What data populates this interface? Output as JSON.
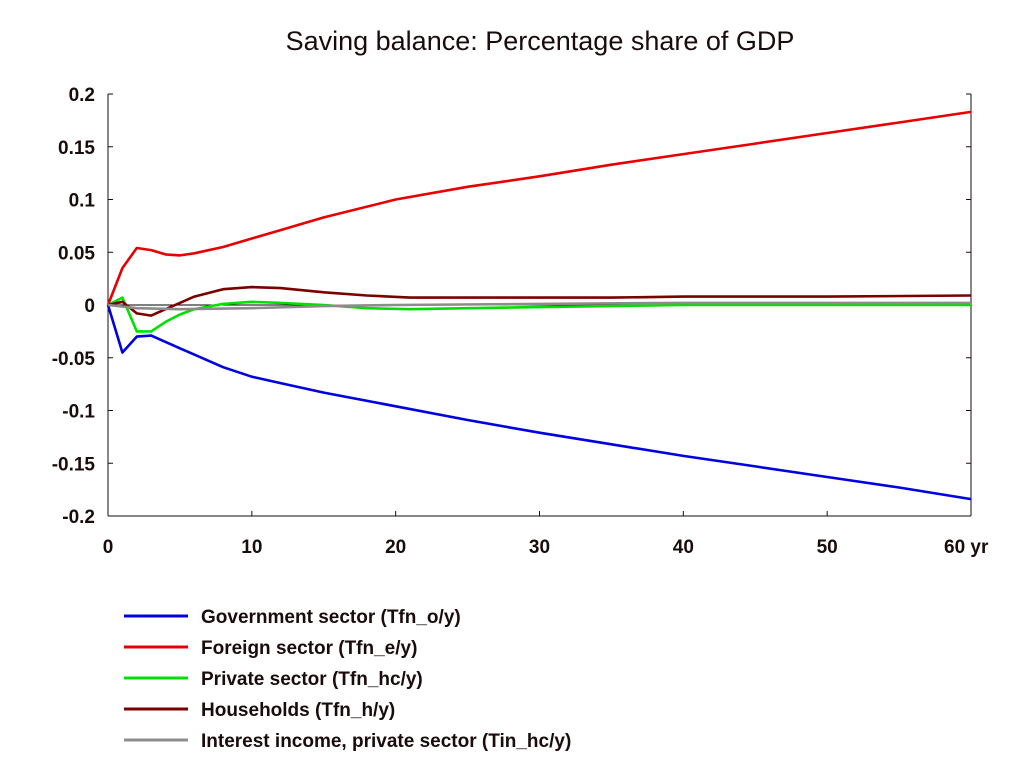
{
  "chart_data": {
    "type": "line",
    "title": "Saving balance: Percentage share of GDP",
    "xlabel": "",
    "ylabel": "",
    "x_unit": "yr",
    "xlim": [
      0,
      60
    ],
    "ylim": [
      -0.2,
      0.2
    ],
    "x_ticks": [
      0,
      10,
      20,
      30,
      40,
      50,
      60
    ],
    "x_tick_labels": [
      "0",
      "10",
      "20",
      "30",
      "40",
      "50",
      "60 yr"
    ],
    "y_ticks": [
      0.2,
      0.15,
      0.1,
      0.05,
      0,
      -0.05,
      -0.1,
      -0.15,
      -0.2
    ],
    "y_tick_labels": [
      "0.2",
      "0.15",
      "0.1",
      "0.05",
      "0",
      "-0.05",
      "-0.1",
      "-0.15",
      "-0.2"
    ],
    "grid": false,
    "legend_position": "bottom",
    "series": [
      {
        "name": "Government sector (Tfn_o/y)",
        "color": "#0000e0",
        "x": [
          0,
          1,
          2,
          3,
          4,
          5,
          6,
          8,
          10,
          12,
          15,
          20,
          25,
          30,
          35,
          40,
          45,
          50,
          55,
          60
        ],
        "values": [
          0,
          -0.045,
          -0.03,
          -0.029,
          -0.035,
          -0.041,
          -0.047,
          -0.059,
          -0.068,
          -0.074,
          -0.083,
          -0.096,
          -0.109,
          -0.121,
          -0.132,
          -0.143,
          -0.153,
          -0.163,
          -0.173,
          -0.184
        ]
      },
      {
        "name": "Foreign sector (Tfn_e/y)",
        "color": "#e80000",
        "x": [
          0,
          1,
          2,
          3,
          4,
          5,
          6,
          8,
          10,
          12,
          15,
          20,
          25,
          30,
          35,
          40,
          45,
          50,
          55,
          60
        ],
        "values": [
          0,
          0.035,
          0.054,
          0.052,
          0.048,
          0.047,
          0.049,
          0.055,
          0.063,
          0.071,
          0.083,
          0.1,
          0.112,
          0.122,
          0.133,
          0.143,
          0.153,
          0.163,
          0.173,
          0.183
        ]
      },
      {
        "name": "Private sector (Tfn_hc/y)",
        "color": "#00e000",
        "x": [
          0,
          1,
          2,
          3,
          4,
          5,
          6,
          8,
          10,
          12,
          15,
          18,
          21,
          25,
          30,
          35,
          40,
          50,
          60
        ],
        "values": [
          0,
          0.007,
          -0.025,
          -0.025,
          -0.016,
          -0.009,
          -0.004,
          0.001,
          0.003,
          0.002,
          0,
          -0.003,
          -0.004,
          -0.003,
          -0.002,
          -0.001,
          0,
          0,
          0
        ]
      },
      {
        "name": "Households (Tfn_h/y)",
        "color": "#7a0000",
        "x": [
          0,
          1,
          2,
          3,
          4,
          5,
          6,
          8,
          10,
          12,
          15,
          18,
          21,
          25,
          30,
          35,
          40,
          50,
          60
        ],
        "values": [
          0,
          0.003,
          -0.008,
          -0.01,
          -0.004,
          0.002,
          0.008,
          0.015,
          0.017,
          0.016,
          0.012,
          0.009,
          0.007,
          0.007,
          0.007,
          0.007,
          0.008,
          0.008,
          0.009
        ]
      },
      {
        "name": "Interest income, private sector (Tin_hc/y)",
        "color": "#8c8c8c",
        "x": [
          0,
          2,
          5,
          10,
          15,
          20,
          30,
          40,
          50,
          60
        ],
        "values": [
          0,
          -0.003,
          -0.004,
          -0.003,
          -0.001,
          0,
          0.001,
          0.002,
          0.002,
          0.002
        ]
      }
    ]
  }
}
